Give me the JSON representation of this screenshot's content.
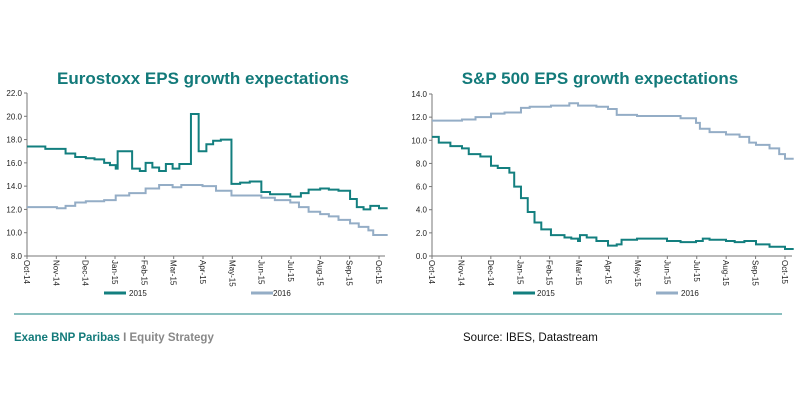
{
  "colors": {
    "2015": "#137f7f",
    "2016": "#94adc6",
    "title": "#137a7a",
    "footer_line": "#137f7f"
  },
  "footer": {
    "brand": "Exane BNP Paribas",
    "separator": " I ",
    "section": "Equity Strategy",
    "source": "Source: IBES, Datastream"
  },
  "chart_data": [
    {
      "type": "line",
      "step": true,
      "title": "Eurostoxx EPS growth expectations",
      "xlabel": "",
      "ylabel": "",
      "ylim": [
        8,
        22
      ],
      "yticks": [
        "8.0",
        "10.0",
        "12.0",
        "14.0",
        "16.0",
        "18.0",
        "20.0",
        "22.0"
      ],
      "xticks": [
        "Oct-14",
        "Nov-14",
        "Dec-14",
        "Jan-15",
        "Feb-15",
        "Mar-15",
        "Apr-15",
        "May-15",
        "Jun-15",
        "Jul-15",
        "Aug-15",
        "Sep-15",
        "Oct-15"
      ],
      "legend_position": "bottom",
      "grid": false,
      "series": [
        {
          "name": "2015",
          "points": [
            [
              "2014-10-01",
              17.4
            ],
            [
              "2014-10-20",
              17.2
            ],
            [
              "2014-11-10",
              16.8
            ],
            [
              "2014-11-20",
              16.5
            ],
            [
              "2014-12-01",
              16.4
            ],
            [
              "2014-12-10",
              16.3
            ],
            [
              "2014-12-20",
              16.0
            ],
            [
              "2014-12-26",
              15.8
            ],
            [
              "2015-01-01",
              15.5
            ],
            [
              "2015-01-03",
              17.0
            ],
            [
              "2015-01-18",
              15.5
            ],
            [
              "2015-01-26",
              15.3
            ],
            [
              "2015-02-01",
              16.0
            ],
            [
              "2015-02-08",
              15.6
            ],
            [
              "2015-02-15",
              15.3
            ],
            [
              "2015-02-22",
              15.9
            ],
            [
              "2015-03-01",
              15.5
            ],
            [
              "2015-03-08",
              15.9
            ],
            [
              "2015-03-20",
              20.2
            ],
            [
              "2015-03-28",
              17.0
            ],
            [
              "2015-04-05",
              17.6
            ],
            [
              "2015-04-12",
              17.9
            ],
            [
              "2015-04-20",
              18.0
            ],
            [
              "2015-05-01",
              14.2
            ],
            [
              "2015-05-10",
              14.3
            ],
            [
              "2015-05-20",
              14.4
            ],
            [
              "2015-06-01",
              13.5
            ],
            [
              "2015-06-10",
              13.3
            ],
            [
              "2015-07-01",
              13.1
            ],
            [
              "2015-07-12",
              13.4
            ],
            [
              "2015-07-20",
              13.7
            ],
            [
              "2015-08-01",
              13.8
            ],
            [
              "2015-08-10",
              13.7
            ],
            [
              "2015-08-20",
              13.6
            ],
            [
              "2015-09-01",
              12.9
            ],
            [
              "2015-09-08",
              12.2
            ],
            [
              "2015-09-15",
              12.0
            ],
            [
              "2015-09-22",
              12.3
            ],
            [
              "2015-10-01",
              12.1
            ],
            [
              "2015-10-10",
              12.1
            ]
          ]
        },
        {
          "name": "2016",
          "points": [
            [
              "2014-10-01",
              12.2
            ],
            [
              "2014-11-01",
              12.1
            ],
            [
              "2014-11-10",
              12.3
            ],
            [
              "2014-11-20",
              12.6
            ],
            [
              "2014-12-01",
              12.7
            ],
            [
              "2014-12-20",
              12.8
            ],
            [
              "2015-01-01",
              13.2
            ],
            [
              "2015-01-15",
              13.4
            ],
            [
              "2015-02-01",
              13.8
            ],
            [
              "2015-02-15",
              14.1
            ],
            [
              "2015-03-01",
              13.9
            ],
            [
              "2015-03-10",
              14.1
            ],
            [
              "2015-04-01",
              14.0
            ],
            [
              "2015-04-15",
              13.6
            ],
            [
              "2015-05-01",
              13.2
            ],
            [
              "2015-06-01",
              13.0
            ],
            [
              "2015-06-15",
              12.8
            ],
            [
              "2015-07-01",
              12.6
            ],
            [
              "2015-07-10",
              12.2
            ],
            [
              "2015-07-20",
              11.8
            ],
            [
              "2015-08-01",
              11.6
            ],
            [
              "2015-08-10",
              11.4
            ],
            [
              "2015-08-20",
              11.1
            ],
            [
              "2015-09-01",
              10.8
            ],
            [
              "2015-09-10",
              10.5
            ],
            [
              "2015-09-20",
              10.2
            ],
            [
              "2015-09-25",
              9.8
            ],
            [
              "2015-10-10",
              9.8
            ]
          ]
        }
      ]
    },
    {
      "type": "line",
      "step": true,
      "title": "S&P 500 EPS growth expectations",
      "xlabel": "",
      "ylabel": "",
      "ylim": [
        0,
        14
      ],
      "yticks": [
        "0.0",
        "2.0",
        "4.0",
        "6.0",
        "8.0",
        "10.0",
        "12.0",
        "14.0"
      ],
      "xticks": [
        "Oct-14",
        "Nov-14",
        "Dec-14",
        "Jan-15",
        "Feb-15",
        "Mar-15",
        "Apr-15",
        "May-15",
        "Jun-15",
        "Jul-15",
        "Aug-15",
        "Sep-15",
        "Oct-15"
      ],
      "legend_position": "bottom",
      "grid": false,
      "series": [
        {
          "name": "2015",
          "points": [
            [
              "2014-10-01",
              10.3
            ],
            [
              "2014-10-08",
              9.8
            ],
            [
              "2014-10-20",
              9.5
            ],
            [
              "2014-11-01",
              9.3
            ],
            [
              "2014-11-08",
              8.8
            ],
            [
              "2014-11-20",
              8.6
            ],
            [
              "2014-12-01",
              7.8
            ],
            [
              "2014-12-08",
              7.6
            ],
            [
              "2014-12-20",
              7.2
            ],
            [
              "2014-12-25",
              6.0
            ],
            [
              "2015-01-01",
              5.0
            ],
            [
              "2015-01-08",
              3.8
            ],
            [
              "2015-01-15",
              2.9
            ],
            [
              "2015-01-22",
              2.3
            ],
            [
              "2015-02-01",
              1.8
            ],
            [
              "2015-02-15",
              1.6
            ],
            [
              "2015-02-22",
              1.5
            ],
            [
              "2015-03-01",
              1.3
            ],
            [
              "2015-03-03",
              1.8
            ],
            [
              "2015-03-10",
              1.6
            ],
            [
              "2015-03-20",
              1.3
            ],
            [
              "2015-04-01",
              0.9
            ],
            [
              "2015-04-10",
              1.0
            ],
            [
              "2015-04-15",
              1.4
            ],
            [
              "2015-05-01",
              1.5
            ],
            [
              "2015-06-01",
              1.3
            ],
            [
              "2015-06-15",
              1.2
            ],
            [
              "2015-07-01",
              1.3
            ],
            [
              "2015-07-08",
              1.5
            ],
            [
              "2015-07-15",
              1.4
            ],
            [
              "2015-08-01",
              1.3
            ],
            [
              "2015-08-10",
              1.2
            ],
            [
              "2015-08-20",
              1.3
            ],
            [
              "2015-09-01",
              1.0
            ],
            [
              "2015-09-15",
              0.8
            ],
            [
              "2015-10-01",
              0.6
            ],
            [
              "2015-10-10",
              0.6
            ]
          ]
        },
        {
          "name": "2016",
          "points": [
            [
              "2014-10-01",
              11.7
            ],
            [
              "2014-11-01",
              11.8
            ],
            [
              "2014-11-15",
              12.0
            ],
            [
              "2014-12-01",
              12.3
            ],
            [
              "2014-12-15",
              12.4
            ],
            [
              "2015-01-01",
              12.8
            ],
            [
              "2015-01-10",
              12.9
            ],
            [
              "2015-02-01",
              13.0
            ],
            [
              "2015-02-20",
              13.2
            ],
            [
              "2015-03-01",
              13.0
            ],
            [
              "2015-03-20",
              12.9
            ],
            [
              "2015-04-01",
              12.7
            ],
            [
              "2015-04-10",
              12.2
            ],
            [
              "2015-05-01",
              12.1
            ],
            [
              "2015-06-01",
              12.1
            ],
            [
              "2015-06-15",
              11.9
            ],
            [
              "2015-07-01",
              11.5
            ],
            [
              "2015-07-05",
              11.0
            ],
            [
              "2015-07-15",
              10.7
            ],
            [
              "2015-08-01",
              10.5
            ],
            [
              "2015-08-15",
              10.3
            ],
            [
              "2015-08-25",
              9.8
            ],
            [
              "2015-09-01",
              9.6
            ],
            [
              "2015-09-15",
              9.3
            ],
            [
              "2015-09-25",
              8.8
            ],
            [
              "2015-10-01",
              8.4
            ],
            [
              "2015-10-10",
              8.4
            ]
          ]
        }
      ]
    }
  ]
}
